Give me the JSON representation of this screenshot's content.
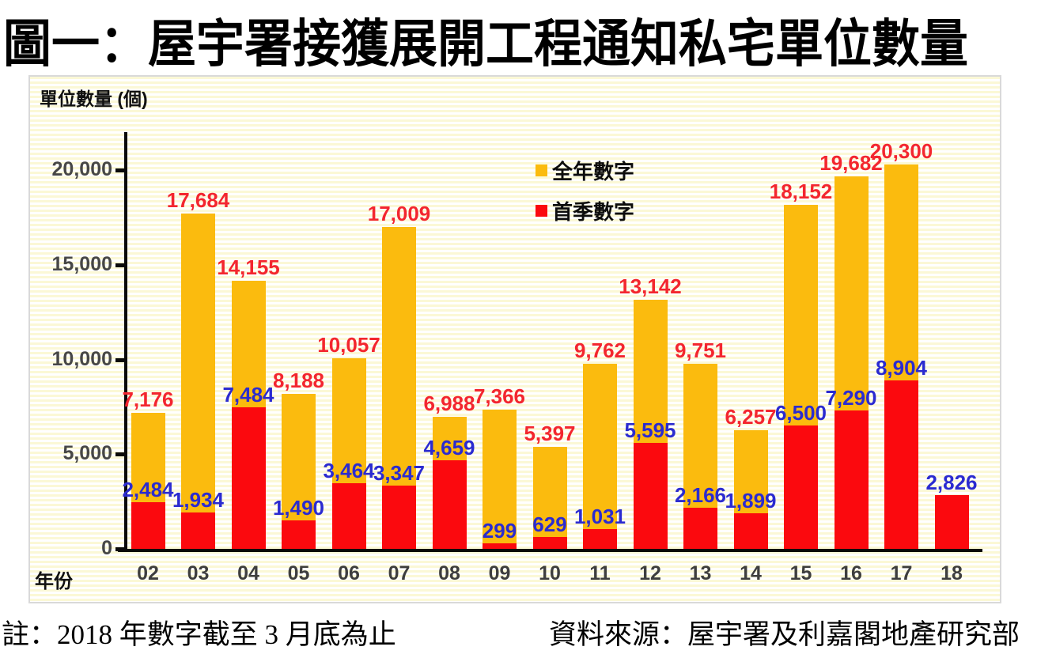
{
  "page": {
    "title": "圖一：屋宇署接獲展開工程通知私宅單位數量",
    "footer_note": "註：2018 年數字截至 3 月底為止",
    "footer_source": "資料來源：屋宇署及利嘉閣地產研究部"
  },
  "chart_data": {
    "type": "bar",
    "mode": "overlapped-bars-front-series-is-first-quarter",
    "title": "圖一：屋宇署接獲展開工程通知私宅單位數量",
    "ylabel": "單位數量 (個)",
    "xlabel": "年份",
    "categories": [
      "02",
      "03",
      "04",
      "05",
      "06",
      "07",
      "08",
      "09",
      "10",
      "11",
      "12",
      "13",
      "14",
      "15",
      "16",
      "17",
      "18"
    ],
    "series": [
      {
        "name": "全年數字",
        "color": "#fbbb0e",
        "label_color": "#f3262f",
        "values": [
          7176,
          17684,
          14155,
          8188,
          10057,
          17009,
          6988,
          7366,
          5397,
          9762,
          13142,
          9751,
          6257,
          18152,
          19682,
          20300,
          null
        ]
      },
      {
        "name": "首季數字",
        "color": "#fb090e",
        "label_color": "#2b2bd0",
        "values": [
          2484,
          1934,
          7484,
          1490,
          3464,
          3347,
          4659,
          299,
          629,
          1031,
          5595,
          2166,
          1899,
          6500,
          7290,
          8904,
          2826
        ]
      }
    ],
    "y_ticks": [
      0,
      5000,
      10000,
      15000,
      20000
    ],
    "y_tick_labels": [
      "0",
      "5,000",
      "10,000",
      "15,000",
      "20,000"
    ],
    "ylim": [
      0,
      21900
    ],
    "grid": false,
    "legend_position": "inside-top-center",
    "background_stripes": [
      "#fbf8d6",
      "#ffffff"
    ]
  }
}
